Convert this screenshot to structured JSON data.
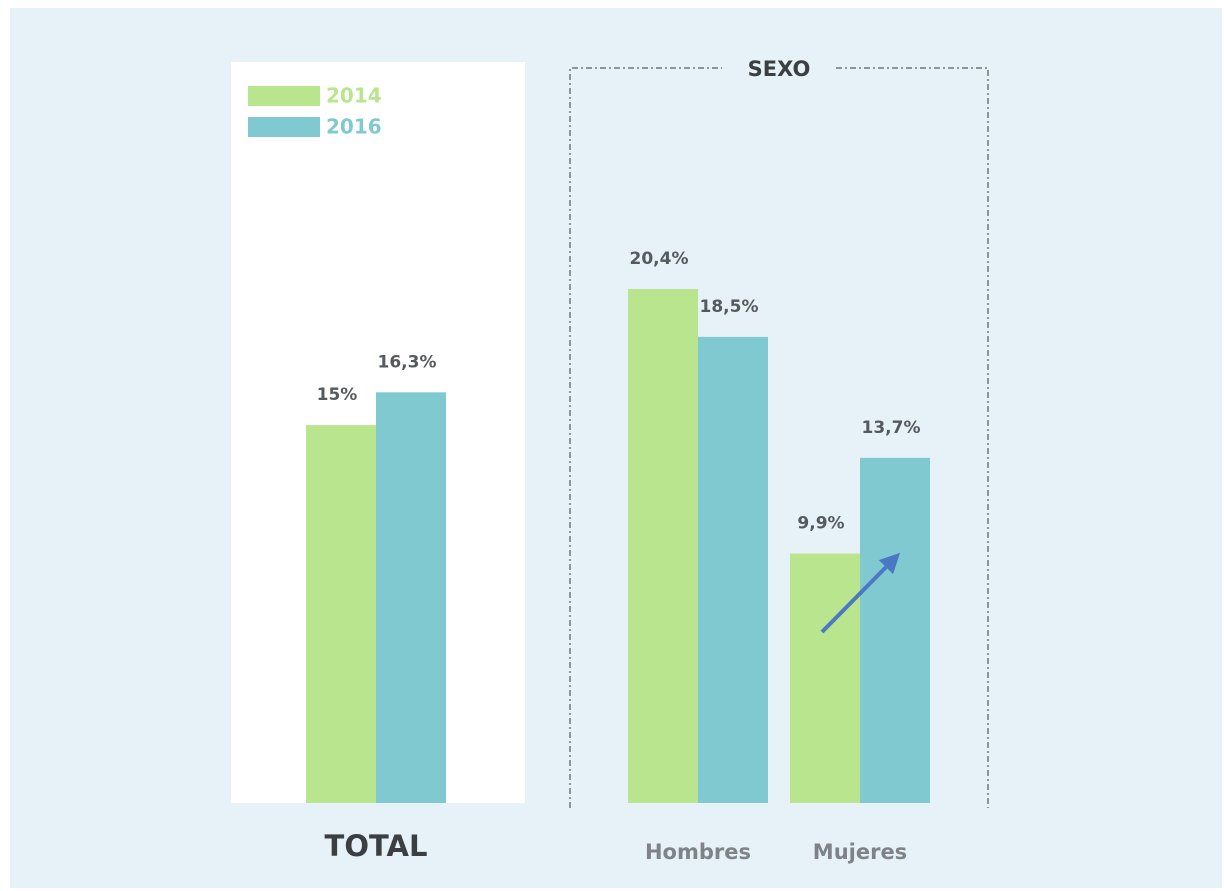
{
  "chart_data": {
    "type": "bar",
    "group_label": "SEXO",
    "categories": [
      "TOTAL",
      "Hombres",
      "Mujeres"
    ],
    "series": [
      {
        "name": "2014",
        "color": "#b9e58e",
        "values": [
          15,
          20.4,
          9.9
        ],
        "value_labels": [
          "15%",
          "20,4%",
          "9,9%"
        ]
      },
      {
        "name": "2016",
        "color": "#80c9d1",
        "values": [
          16.3,
          18.5,
          13.7
        ],
        "value_labels": [
          "16,3%",
          "18,5%",
          "13,7%"
        ]
      }
    ]
  }
}
